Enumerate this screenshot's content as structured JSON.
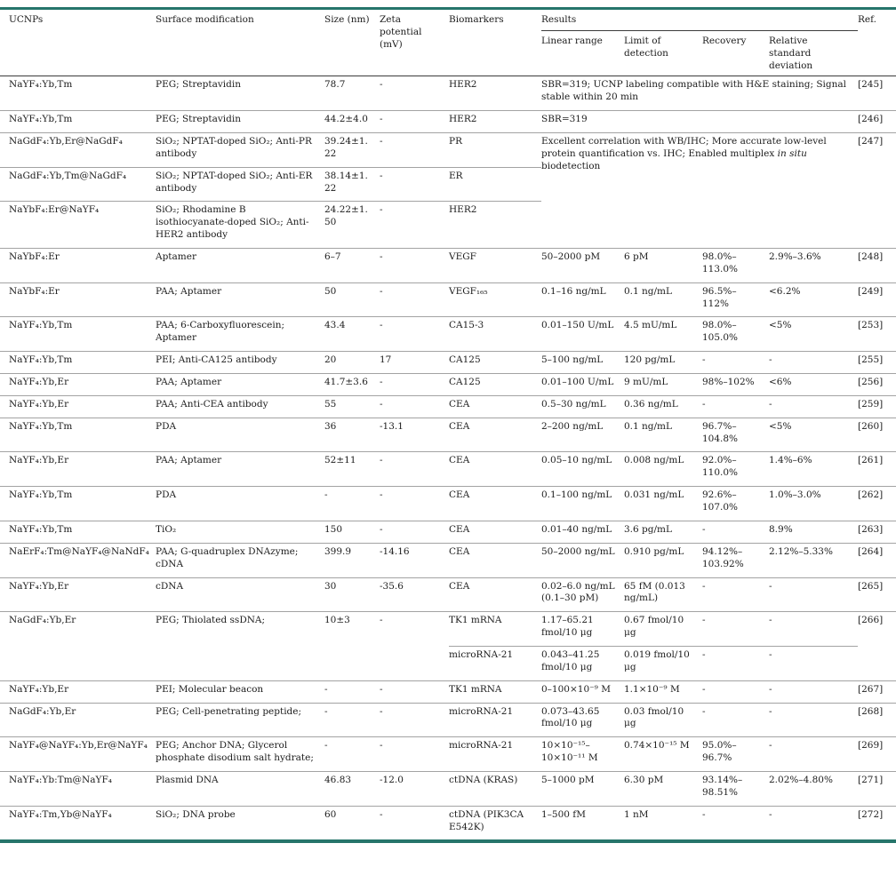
{
  "table": {
    "accent_color": "#26756b",
    "headers": {
      "ucnp": "UCNPs",
      "surface": "Surface modification",
      "size": "Size (nm)",
      "zeta": "Zeta potential (mV)",
      "biomarkers": "Biomarkers",
      "results": "Results",
      "linear": "Linear range",
      "lod": "Limit of detection",
      "recovery": "Recovery",
      "rsd": "Relative standard deviation",
      "ref": "Ref."
    },
    "rows": [
      {
        "ucnp": "NaYF₄:Yb,Tm",
        "surface": "PEG; Streptavidin",
        "size": "78.7",
        "zeta": "-",
        "biomarker": "HER2",
        "result": "SBR=319; UCNP labeling compatible with H&E staining; Signal stable within 20 min",
        "ref": "[245]"
      },
      {
        "ucnp": "NaYF₄:Yb,Tm",
        "surface": "PEG; Streptavidin",
        "size": "44.2±4.0",
        "zeta": "-",
        "biomarker": "HER2",
        "result": "SBR=319",
        "ref": "[246]"
      },
      {
        "ucnp": "NaGdF₄:Yb,Er@NaGdF₄",
        "surface": "SiO₂; NPTAT-doped SiO₂; Anti-PR antibody",
        "size": "39.24±1.22",
        "zeta": "-",
        "biomarker": "PR",
        "result_pre": "Excellent correlation with WB/IHC; More accurate low-level protein quantification vs. IHC; Enabled multiplex ",
        "result_italic": "in situ",
        "result_post": " biodetection",
        "ref": "[247]"
      },
      {
        "ucnp": "NaGdF₄:Yb,Tm@NaGdF₄",
        "surface": "SiO₂; NPTAT-doped SiO₂; Anti-ER antibody",
        "size": "38.14±1.22",
        "zeta": "-",
        "biomarker": "ER"
      },
      {
        "ucnp": "NaYbF₄:Er@NaYF₄",
        "surface": "SiO₂; Rhodamine B isothiocyanate-doped SiO₂; Anti-HER2 antibody",
        "size": "24.22±1.50",
        "zeta": "-",
        "biomarker": "HER2"
      },
      {
        "ucnp": "NaYbF₄:Er",
        "surface": "Aptamer",
        "size": "6–7",
        "zeta": "-",
        "biomarker": "VEGF",
        "linear": "50–2000 pM",
        "lod": "6 pM",
        "recovery": "98.0%–113.0%",
        "rsd": "2.9%–3.6%",
        "ref": "[248]"
      },
      {
        "ucnp": "NaYbF₄:Er",
        "surface": "PAA; Aptamer",
        "size": "50",
        "zeta": "-",
        "biomarker": "VEGF₁₆₅",
        "linear": "0.1–16 ng/mL",
        "lod": "0.1 ng/mL",
        "recovery": "96.5%–112%",
        "rsd": "<6.2%",
        "ref": "[249]"
      },
      {
        "ucnp": "NaYF₄:Yb,Tm",
        "surface": "PAA; 6-Carboxyfluorescein; Aptamer",
        "size": "43.4",
        "zeta": "-",
        "biomarker": "CA15-3",
        "linear": "0.01–150 U/mL",
        "lod": "4.5 mU/mL",
        "recovery": "98.0%–105.0%",
        "rsd": "<5%",
        "ref": "[253]"
      },
      {
        "ucnp": "NaYF₄:Yb,Tm",
        "surface": "PEI; Anti-CA125 antibody",
        "size": "20",
        "zeta": "17",
        "biomarker": "CA125",
        "linear": "5–100 ng/mL",
        "lod": "120 pg/mL",
        "recovery": "-",
        "rsd": "-",
        "ref": "[255]"
      },
      {
        "ucnp": "NaYF₄:Yb,Er",
        "surface": "PAA; Aptamer",
        "size": "41.7±3.6",
        "zeta": "-",
        "biomarker": "CA125",
        "linear": "0.01–100 U/mL",
        "lod": "9 mU/mL",
        "recovery": "98%–102%",
        "rsd": "<6%",
        "ref": "[256]"
      },
      {
        "ucnp": "NaYF₄:Yb,Er",
        "surface": "PAA; Anti-CEA antibody",
        "size": "55",
        "zeta": "-",
        "biomarker": "CEA",
        "linear": "0.5–30 ng/mL",
        "lod": "0.36 ng/mL",
        "recovery": "-",
        "rsd": "-",
        "ref": "[259]"
      },
      {
        "ucnp": "NaYF₄:Yb,Tm",
        "surface": "PDA",
        "size": "36",
        "zeta": "-13.1",
        "biomarker": "CEA",
        "linear": "2–200 ng/mL",
        "lod": "0.1 ng/mL",
        "recovery": "96.7%–104.8%",
        "rsd": "<5%",
        "ref": "[260]"
      },
      {
        "ucnp": "NaYF₄:Yb,Er",
        "surface": "PAA; Aptamer",
        "size": "52±11",
        "zeta": "-",
        "biomarker": "CEA",
        "linear": "0.05–10 ng/mL",
        "lod": "0.008 ng/mL",
        "recovery": "92.0%–110.0%",
        "rsd": "1.4%–6%",
        "ref": "[261]"
      },
      {
        "ucnp": "NaYF₄:Yb,Tm",
        "surface": "PDA",
        "size": "-",
        "zeta": "-",
        "biomarker": "CEA",
        "linear": "0.1–100 ng/mL",
        "lod": "0.031 ng/mL",
        "recovery": "92.6%–107.0%",
        "rsd": "1.0%–3.0%",
        "ref": "[262]"
      },
      {
        "ucnp": "NaYF₄:Yb,Tm",
        "surface": "TiO₂",
        "size": "150",
        "zeta": "-",
        "biomarker": "CEA",
        "linear": "0.01–40 ng/mL",
        "lod": "3.6 pg/mL",
        "recovery": "-",
        "rsd": "8.9%",
        "ref": "[263]"
      },
      {
        "ucnp": "NaErF₄:Tm@NaYF₄@NaNdF₄",
        "surface": "PAA; G-quadruplex DNAzyme; cDNA",
        "size": "399.9",
        "zeta": "-14.16",
        "biomarker": "CEA",
        "linear": "50–2000 ng/mL",
        "lod": "0.910 pg/mL",
        "recovery": "94.12%–103.92%",
        "rsd": "2.12%–5.33%",
        "ref": "[264]"
      },
      {
        "ucnp": "NaYF₄:Yb,Er",
        "surface": "cDNA",
        "size": "30",
        "zeta": "-35.6",
        "biomarker": "CEA",
        "linear": "0.02–6.0 ng/mL (0.1–30 pM)",
        "lod": "65 fM (0.013 ng/mL)",
        "recovery": "-",
        "rsd": "-",
        "ref": "[265]"
      },
      {
        "ucnp": "NaGdF₄:Yb,Er",
        "surface": "PEG; Thiolated ssDNA;",
        "size": "10±3",
        "zeta": "-",
        "biomarker": "TK1 mRNA",
        "linear": "1.17–65.21 fmol/10 μg",
        "lod": "0.67 fmol/10 μg",
        "recovery": "-",
        "rsd": "-",
        "ref": "[266]"
      },
      {
        "biomarker": "microRNA-21",
        "linear": "0.043–41.25 fmol/10 μg",
        "lod": "0.019 fmol/10 μg",
        "recovery": "-",
        "rsd": "-"
      },
      {
        "ucnp": "NaYF₄:Yb,Er",
        "surface": "PEI; Molecular beacon",
        "size": "-",
        "zeta": "-",
        "biomarker": "TK1 mRNA",
        "linear": "0–100×10⁻⁹ M",
        "lod": "1.1×10⁻⁹ M",
        "recovery": "-",
        "rsd": "-",
        "ref": "[267]"
      },
      {
        "ucnp": "NaGdF₄:Yb,Er",
        "surface": "PEG; Cell-penetrating peptide;",
        "size": "-",
        "zeta": "-",
        "biomarker": "microRNA-21",
        "linear": "0.073–43.65 fmol/10 μg",
        "lod": "0.03 fmol/10 μg",
        "recovery": "-",
        "rsd": "-",
        "ref": "[268]"
      },
      {
        "ucnp": "NaYF₄@NaYF₄:Yb,Er@NaYF₄",
        "surface": "PEG; Anchor DNA; Glycerol phosphate disodium salt hydrate;",
        "size": "-",
        "zeta": "-",
        "biomarker": "microRNA-21",
        "linear": "10×10⁻¹⁵–10×10⁻¹¹ M",
        "lod": "0.74×10⁻¹⁵ M",
        "recovery": "95.0%–96.7%",
        "rsd": "-",
        "ref": "[269]"
      },
      {
        "ucnp": "NaYF₄:Yb:Tm@NaYF₄",
        "surface": "Plasmid DNA",
        "size": "46.83",
        "zeta": "-12.0",
        "biomarker": "ctDNA (KRAS)",
        "linear": "5–1000 pM",
        "lod": "6.30 pM",
        "recovery": "93.14%–98.51%",
        "rsd": "2.02%–4.80%",
        "ref": "[271]"
      },
      {
        "ucnp": "NaYF₄:Tm,Yb@NaYF₄",
        "surface": "SiO₂; DNA probe",
        "size": "60",
        "zeta": "-",
        "biomarker": "ctDNA (PIK3CA E542K)",
        "linear": "1–500 fM",
        "lod": "1 nM",
        "recovery": "-",
        "rsd": "-",
        "ref": "[272]"
      }
    ]
  }
}
